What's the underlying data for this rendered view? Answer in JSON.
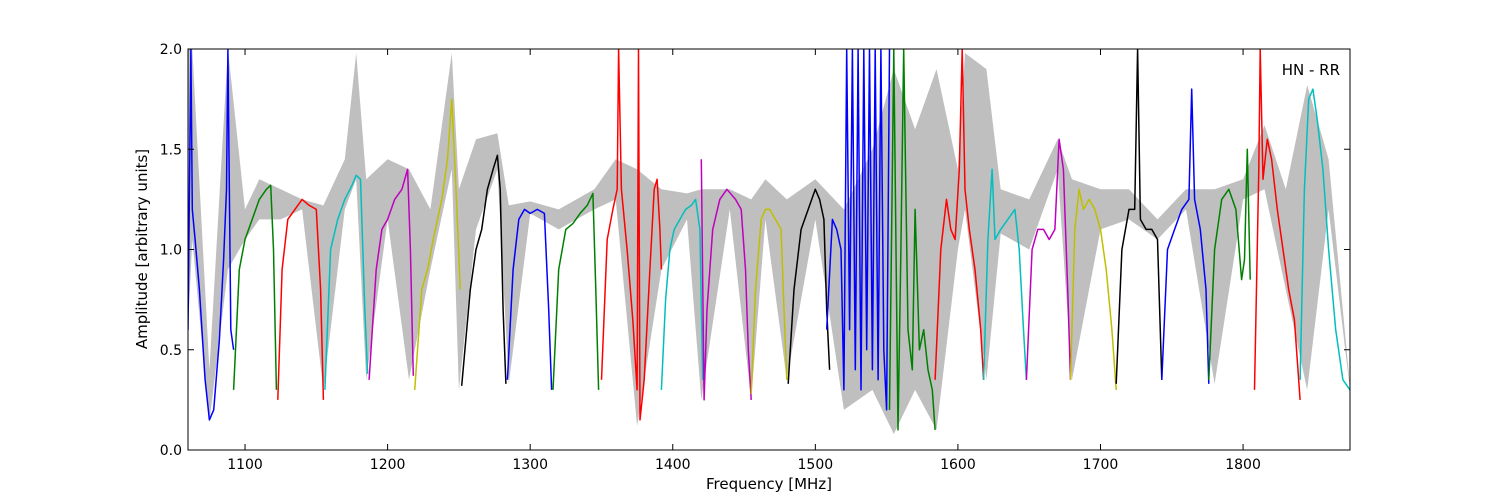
{
  "chart_data": {
    "type": "line",
    "xlabel": "Frequency [MHz]",
    "ylabel": "Amplitude [arbitrary units]",
    "annotation": "HN - RR",
    "xlim": [
      1060,
      1875
    ],
    "ylim": [
      0.0,
      2.0
    ],
    "grid": false,
    "x_ticks": [
      1100,
      1200,
      1300,
      1400,
      1500,
      1600,
      1700,
      1800
    ],
    "x_tick_labels": [
      "1100",
      "1200",
      "1300",
      "1400",
      "1500",
      "1600",
      "1700",
      "1800"
    ],
    "y_ticks": [
      0.0,
      0.5,
      1.0,
      1.5,
      2.0
    ],
    "y_tick_labels": [
      "0.0",
      "0.5",
      "1.0",
      "1.5",
      "2.0"
    ],
    "band_color": "#bfbfbf",
    "series": [
      {
        "color": "#0000ff",
        "x": [
          1060,
          1062,
          1063,
          1065,
          1068,
          1072,
          1075,
          1078,
          1082,
          1085,
          1087,
          1088,
          1090,
          1092
        ],
        "y": [
          0.6,
          2.0,
          1.2,
          1.05,
          0.8,
          0.35,
          0.15,
          0.2,
          0.55,
          0.95,
          1.3,
          2.0,
          0.6,
          0.5
        ]
      },
      {
        "color": "#008000",
        "x": [
          1092,
          1096,
          1100,
          1105,
          1110,
          1115,
          1118,
          1120,
          1122
        ],
        "y": [
          0.3,
          0.9,
          1.05,
          1.15,
          1.25,
          1.3,
          1.32,
          1.0,
          0.3
        ]
      },
      {
        "color": "#ff0000",
        "x": [
          1123,
          1126,
          1130,
          1135,
          1140,
          1145,
          1150,
          1153,
          1155
        ],
        "y": [
          0.25,
          0.9,
          1.15,
          1.2,
          1.25,
          1.22,
          1.2,
          0.8,
          0.25
        ]
      },
      {
        "color": "#00bfbf",
        "x": [
          1156,
          1160,
          1165,
          1170,
          1175,
          1178,
          1181,
          1184,
          1186
        ],
        "y": [
          0.3,
          1.0,
          1.15,
          1.25,
          1.32,
          1.37,
          1.35,
          0.7,
          0.38
        ]
      },
      {
        "color": "#bf00bf",
        "x": [
          1187,
          1192,
          1196,
          1200,
          1205,
          1210,
          1214,
          1216,
          1218
        ],
        "y": [
          0.35,
          0.9,
          1.1,
          1.15,
          1.25,
          1.3,
          1.4,
          1.0,
          0.37
        ]
      },
      {
        "color": "#bfbf00",
        "x": [
          1219,
          1224,
          1228,
          1232,
          1238,
          1242,
          1245,
          1248,
          1251
        ],
        "y": [
          0.3,
          0.8,
          0.9,
          1.05,
          1.25,
          1.45,
          1.75,
          1.3,
          0.8
        ]
      },
      {
        "color": "#000000",
        "x": [
          1252,
          1258,
          1262,
          1266,
          1270,
          1274,
          1277,
          1279,
          1281,
          1283
        ],
        "y": [
          0.32,
          0.8,
          1.0,
          1.1,
          1.3,
          1.4,
          1.47,
          1.3,
          0.7,
          0.33
        ]
      },
      {
        "color": "#0000ff",
        "x": [
          1284,
          1288,
          1292,
          1296,
          1300,
          1305,
          1310,
          1313,
          1315
        ],
        "y": [
          0.35,
          0.9,
          1.15,
          1.2,
          1.18,
          1.2,
          1.18,
          0.7,
          0.3
        ]
      },
      {
        "color": "#008000",
        "x": [
          1316,
          1320,
          1325,
          1330,
          1335,
          1340,
          1344,
          1346,
          1348
        ],
        "y": [
          0.3,
          0.9,
          1.1,
          1.13,
          1.18,
          1.22,
          1.28,
          0.8,
          0.3
        ]
      },
      {
        "color": "#ff0000",
        "x": [
          1350,
          1354,
          1358,
          1361,
          1362,
          1364,
          1368,
          1372,
          1375,
          1376,
          1377,
          1380,
          1384,
          1387,
          1389,
          1391,
          1392
        ],
        "y": [
          0.35,
          1.05,
          1.2,
          1.3,
          2.0,
          1.3,
          1.0,
          0.65,
          0.3,
          2.0,
          0.15,
          0.35,
          0.9,
          1.3,
          1.35,
          1.1,
          0.9
        ]
      },
      {
        "color": "#00bfbf",
        "x": [
          1392,
          1395,
          1398,
          1401,
          1405,
          1409,
          1413,
          1416,
          1419,
          1421
        ],
        "y": [
          0.3,
          0.75,
          1.0,
          1.1,
          1.15,
          1.2,
          1.22,
          1.25,
          1.1,
          0.35
        ]
      },
      {
        "color": "#bf00bf",
        "x": [
          1420,
          1422,
          1424,
          1428,
          1433,
          1438,
          1444,
          1448,
          1451,
          1453,
          1455
        ],
        "y": [
          1.45,
          0.25,
          0.7,
          1.1,
          1.25,
          1.3,
          1.25,
          1.2,
          0.9,
          0.5,
          0.25
        ]
      },
      {
        "color": "#bfbf00",
        "x": [
          1455,
          1458,
          1462,
          1465,
          1468,
          1472,
          1476,
          1478,
          1480
        ],
        "y": [
          0.28,
          0.8,
          1.15,
          1.2,
          1.2,
          1.15,
          1.1,
          0.7,
          0.35
        ]
      },
      {
        "color": "#000000",
        "x": [
          1481,
          1485,
          1490,
          1495,
          1500,
          1503,
          1506,
          1508,
          1510
        ],
        "y": [
          0.33,
          0.8,
          1.1,
          1.2,
          1.3,
          1.25,
          1.15,
          0.7,
          0.4
        ]
      },
      {
        "color": "#0000ff",
        "x": [
          1508,
          1512,
          1515,
          1518,
          1520,
          1522,
          1524,
          1526,
          1528,
          1530,
          1532,
          1534,
          1536,
          1538,
          1540,
          1542,
          1544,
          1546,
          1548,
          1550,
          1552
        ],
        "y": [
          0.6,
          1.15,
          1.1,
          1.0,
          0.3,
          2.0,
          0.6,
          2.0,
          0.4,
          2.0,
          0.3,
          2.0,
          0.5,
          2.0,
          0.4,
          2.0,
          0.35,
          2.0,
          0.5,
          0.2,
          2.0
        ]
      },
      {
        "color": "#008000",
        "x": [
          1552,
          1555,
          1558,
          1560,
          1562,
          1565,
          1568,
          1570,
          1573,
          1576,
          1579,
          1582,
          1584
        ],
        "y": [
          0.2,
          2.0,
          0.1,
          1.0,
          2.0,
          0.6,
          0.4,
          1.2,
          0.5,
          0.6,
          0.4,
          0.3,
          0.1
        ]
      },
      {
        "color": "#ff0000",
        "x": [
          1584,
          1588,
          1592,
          1595,
          1598,
          1601,
          1603,
          1605,
          1608,
          1612,
          1616,
          1618
        ],
        "y": [
          0.35,
          1.0,
          1.25,
          1.1,
          1.05,
          1.4,
          2.0,
          1.3,
          1.1,
          0.9,
          0.6,
          0.35
        ]
      },
      {
        "color": "#00bfbf",
        "x": [
          1618,
          1621,
          1624,
          1626,
          1630,
          1635,
          1640,
          1643,
          1646,
          1648
        ],
        "y": [
          0.35,
          1.05,
          1.4,
          1.05,
          1.1,
          1.15,
          1.2,
          1.0,
          0.6,
          0.35
        ]
      },
      {
        "color": "#bf00bf",
        "x": [
          1648,
          1652,
          1656,
          1660,
          1664,
          1668,
          1671,
          1674,
          1677,
          1679
        ],
        "y": [
          0.35,
          1.0,
          1.1,
          1.1,
          1.05,
          1.1,
          1.55,
          1.4,
          0.8,
          0.35
        ]
      },
      {
        "color": "#bfbf00",
        "x": [
          1679,
          1682,
          1685,
          1688,
          1692,
          1696,
          1700,
          1704,
          1708,
          1711
        ],
        "y": [
          0.35,
          1.1,
          1.3,
          1.2,
          1.25,
          1.2,
          1.1,
          0.9,
          0.6,
          0.3
        ]
      },
      {
        "color": "#000000",
        "x": [
          1711,
          1715,
          1720,
          1724,
          1726,
          1728,
          1732,
          1736,
          1740,
          1743
        ],
        "y": [
          0.33,
          1.0,
          1.2,
          1.2,
          2.0,
          1.15,
          1.1,
          1.1,
          1.05,
          0.35
        ]
      },
      {
        "color": "#0000ff",
        "x": [
          1743,
          1747,
          1752,
          1757,
          1762,
          1764,
          1766,
          1770,
          1774,
          1776
        ],
        "y": [
          0.35,
          1.0,
          1.1,
          1.2,
          1.25,
          1.8,
          1.25,
          1.1,
          0.8,
          0.33
        ]
      },
      {
        "color": "#008000",
        "x": [
          1776,
          1780,
          1785,
          1790,
          1795,
          1799,
          1801,
          1803,
          1805
        ],
        "y": [
          0.35,
          1.0,
          1.25,
          1.3,
          1.2,
          0.85,
          0.95,
          1.5,
          0.85
        ]
      },
      {
        "color": "#ff0000",
        "x": [
          1808,
          1811,
          1812,
          1814,
          1817,
          1820,
          1824,
          1828,
          1832,
          1836,
          1840
        ],
        "y": [
          0.3,
          1.4,
          2.0,
          1.35,
          1.55,
          1.45,
          1.2,
          1.0,
          0.8,
          0.65,
          0.25
        ]
      },
      {
        "color": "#00bfbf",
        "x": [
          1840,
          1843,
          1846,
          1849,
          1852,
          1856,
          1860,
          1865,
          1870,
          1875
        ],
        "y": [
          0.35,
          1.3,
          1.75,
          1.8,
          1.65,
          1.4,
          1.0,
          0.6,
          0.35,
          0.3
        ]
      }
    ],
    "band": {
      "x": [
        1060,
        1063,
        1075,
        1088,
        1100,
        1110,
        1125,
        1140,
        1155,
        1170,
        1178,
        1185,
        1200,
        1215,
        1230,
        1245,
        1250,
        1262,
        1277,
        1285,
        1300,
        1320,
        1345,
        1360,
        1375,
        1392,
        1410,
        1420,
        1440,
        1455,
        1465,
        1480,
        1500,
        1520,
        1540,
        1555,
        1570,
        1585,
        1600,
        1605,
        1620,
        1630,
        1650,
        1670,
        1680,
        1700,
        1720,
        1740,
        1760,
        1780,
        1800,
        1815,
        1830,
        1845,
        1860,
        1875
      ],
      "y_high": [
        2.0,
        2.0,
        0.4,
        2.0,
        1.2,
        1.35,
        1.3,
        1.25,
        1.22,
        1.45,
        1.98,
        1.35,
        1.45,
        1.4,
        1.2,
        1.98,
        1.3,
        1.55,
        1.58,
        1.22,
        1.24,
        1.2,
        1.3,
        1.45,
        1.4,
        1.3,
        1.28,
        1.3,
        1.3,
        1.25,
        1.35,
        1.25,
        1.35,
        1.2,
        1.5,
        1.9,
        1.6,
        1.9,
        1.4,
        1.98,
        1.9,
        1.3,
        1.25,
        1.55,
        1.35,
        1.3,
        1.3,
        1.15,
        1.3,
        1.3,
        1.35,
        1.62,
        1.3,
        1.82,
        1.45,
        0.32
      ],
      "y_low": [
        0.6,
        1.05,
        0.14,
        0.9,
        1.05,
        1.15,
        1.15,
        1.2,
        0.3,
        1.2,
        1.35,
        0.35,
        1.15,
        0.35,
        0.9,
        1.4,
        0.3,
        1.1,
        1.4,
        0.33,
        1.18,
        1.1,
        1.2,
        1.25,
        0.12,
        0.9,
        1.15,
        0.25,
        1.2,
        0.25,
        1.15,
        0.35,
        1.15,
        0.2,
        0.3,
        0.08,
        0.3,
        0.1,
        1.0,
        1.2,
        0.35,
        1.08,
        1.0,
        1.4,
        0.35,
        1.1,
        1.15,
        1.05,
        1.2,
        0.33,
        1.25,
        1.3,
        0.8,
        0.3,
        1.2,
        0.3
      ]
    }
  }
}
